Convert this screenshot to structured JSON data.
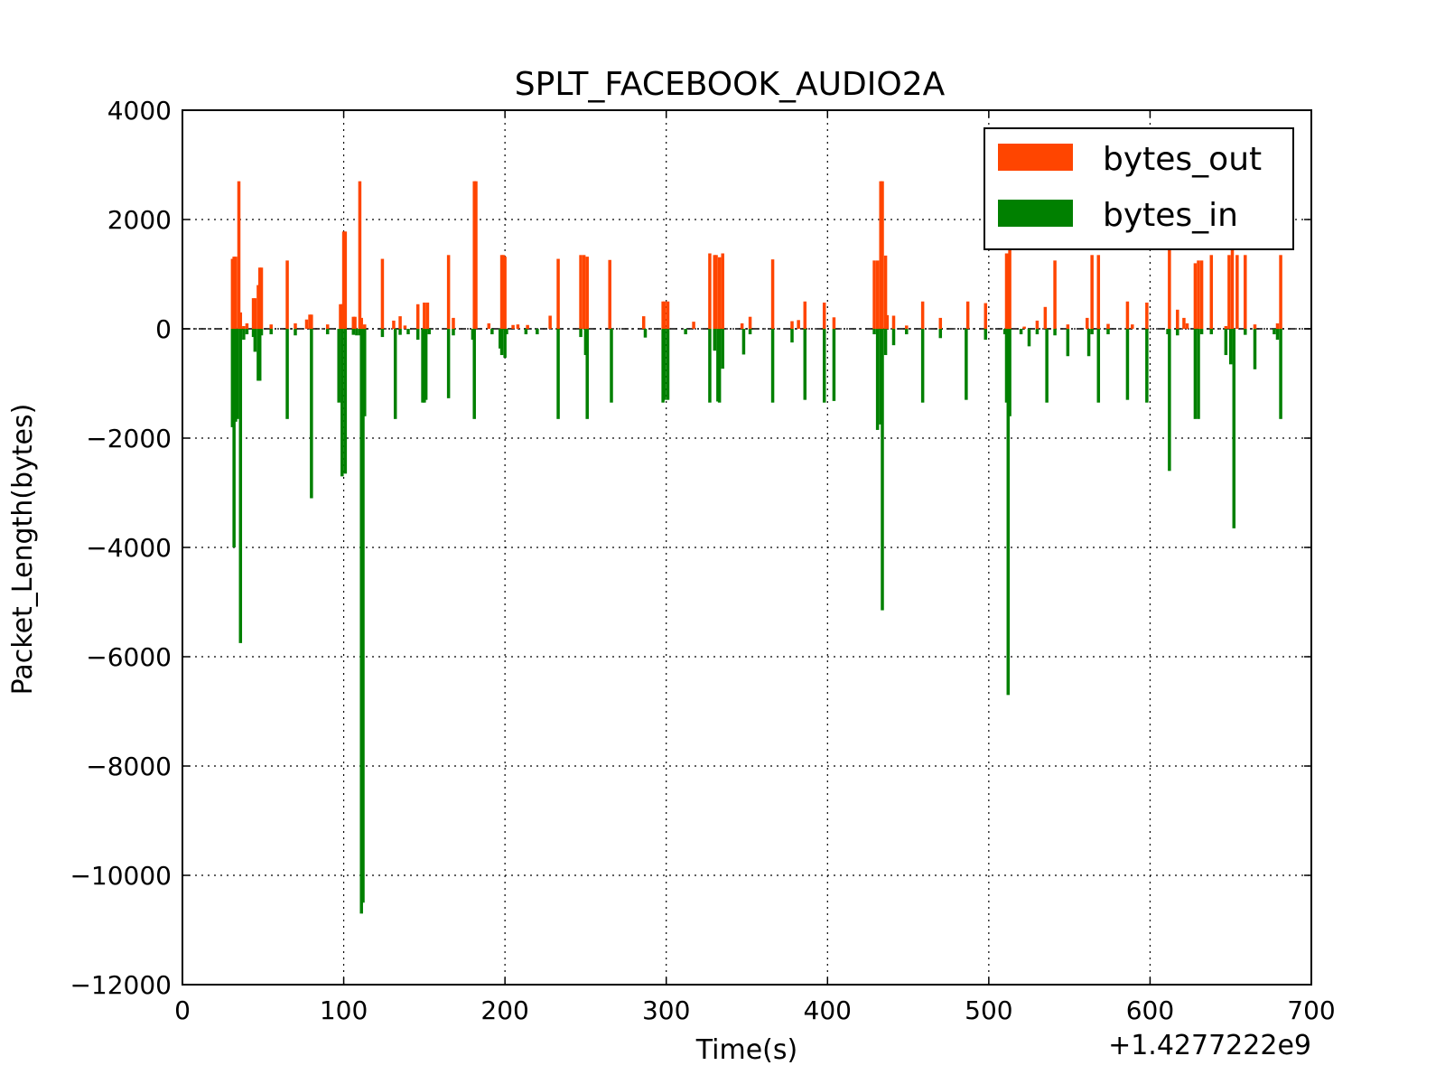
{
  "chart_data": {
    "type": "bar",
    "title": "SPLT_FACEBOOK_AUDIO2A",
    "xlabel": "Time(s)",
    "ylabel": "Packet_Length(bytes)",
    "x_offset_label": "+1.4277222e9",
    "xlim": [
      0,
      700
    ],
    "ylim": [
      -12000,
      4000
    ],
    "x_ticks": [
      0,
      100,
      200,
      300,
      400,
      500,
      600,
      700
    ],
    "x_tick_labels": [
      "0",
      "100",
      "200",
      "300",
      "400",
      "500",
      "600",
      "700"
    ],
    "y_ticks": [
      4000,
      2000,
      0,
      -2000,
      -4000,
      -6000,
      -8000,
      -10000,
      -12000
    ],
    "y_tick_labels": [
      "4000",
      "2000",
      "0",
      "−2000",
      "−4000",
      "−6000",
      "−8000",
      "−10000",
      "−12000"
    ],
    "grid": true,
    "legend_position": "top-right",
    "series": [
      {
        "name": "bytes_out",
        "color": "#ff4500",
        "x": [
          31,
          32,
          33,
          35,
          36,
          38,
          40,
          44,
          45,
          47,
          48,
          49,
          55,
          65,
          70,
          77,
          79,
          80,
          90,
          98,
          99,
          100,
          101,
          106,
          107,
          110,
          111,
          113,
          124,
          131,
          135,
          138,
          146,
          150,
          152,
          165,
          168,
          181,
          182,
          190,
          198,
          199,
          200,
          205,
          208,
          214,
          228,
          233,
          247,
          249,
          251,
          265,
          286,
          298,
          299,
          301,
          317,
          327,
          330,
          331,
          333,
          335,
          347,
          352,
          366,
          378,
          382,
          386,
          398,
          404,
          429,
          431,
          433,
          434,
          436,
          437,
          441,
          449,
          459,
          470,
          487,
          498,
          511,
          512,
          513,
          522,
          530,
          535,
          541,
          549,
          561,
          564,
          568,
          574,
          586,
          589,
          598,
          612,
          617,
          621,
          623,
          628,
          630,
          632,
          638,
          647,
          649,
          651,
          654,
          659,
          665,
          679,
          681
        ],
        "values": [
          1280,
          1320,
          1320,
          2700,
          300,
          50,
          100,
          560,
          560,
          800,
          1120,
          1120,
          80,
          1250,
          100,
          170,
          260,
          260,
          80,
          450,
          450,
          1780,
          1780,
          220,
          220,
          2700,
          200,
          80,
          1280,
          150,
          230,
          60,
          450,
          480,
          480,
          1350,
          200,
          2700,
          2700,
          100,
          1350,
          1350,
          1320,
          70,
          80,
          70,
          240,
          1280,
          1350,
          1350,
          1320,
          1260,
          230,
          500,
          500,
          500,
          130,
          1380,
          1350,
          1350,
          1310,
          1380,
          100,
          220,
          1270,
          140,
          160,
          500,
          480,
          210,
          1250,
          1250,
          2700,
          2700,
          1340,
          250,
          240,
          60,
          500,
          200,
          500,
          470,
          1380,
          1380,
          1520,
          40,
          150,
          400,
          1250,
          80,
          200,
          1350,
          1350,
          90,
          500,
          80,
          480,
          1520,
          350,
          200,
          100,
          1200,
          1250,
          1250,
          1350,
          50,
          1350,
          1450,
          1350,
          1350,
          80,
          100,
          1350
        ]
      },
      {
        "name": "bytes_in",
        "color": "#008000",
        "x": [
          31,
          32,
          33,
          34,
          36,
          38,
          40,
          44,
          45,
          47,
          48,
          49,
          55,
          65,
          70,
          80,
          90,
          97,
          99,
          101,
          106,
          108,
          110,
          111,
          112,
          113,
          124,
          132,
          135,
          140,
          146,
          149,
          150,
          151,
          153,
          165,
          168,
          180,
          181,
          192,
          197,
          198,
          200,
          201,
          213,
          220,
          233,
          247,
          250,
          251,
          266,
          287,
          298,
          299,
          301,
          312,
          327,
          330,
          332,
          333,
          335,
          348,
          352,
          366,
          378,
          386,
          398,
          404,
          429,
          431,
          433,
          434,
          436,
          441,
          449,
          459,
          470,
          486,
          498,
          510,
          511,
          512,
          513,
          520,
          525,
          530,
          536,
          541,
          549,
          562,
          564,
          568,
          574,
          586,
          598,
          611,
          612,
          617,
          628,
          630,
          632,
          638,
          647,
          650,
          652,
          659,
          665,
          677,
          679,
          681
        ],
        "values": [
          -1800,
          -4000,
          -1700,
          -1650,
          -5750,
          -200,
          -100,
          -150,
          -420,
          -950,
          -950,
          -120,
          -100,
          -1650,
          -120,
          -3100,
          -100,
          -1350,
          -2700,
          -2650,
          -110,
          -120,
          -120,
          -10700,
          -10500,
          -1600,
          -150,
          -1650,
          -110,
          -100,
          -200,
          -1350,
          -1350,
          -1300,
          -100,
          -1270,
          -120,
          -200,
          -1650,
          -100,
          -360,
          -480,
          -530,
          -100,
          -100,
          -100,
          -1650,
          -150,
          -480,
          -1650,
          -1350,
          -160,
          -1350,
          -1300,
          -1300,
          -100,
          -1350,
          -400,
          -1330,
          -1350,
          -730,
          -470,
          -100,
          -1350,
          -250,
          -1300,
          -1350,
          -1320,
          -100,
          -1850,
          -1750,
          -5150,
          -480,
          -300,
          -100,
          -1350,
          -170,
          -1300,
          -200,
          -100,
          -1350,
          -6700,
          -1600,
          -100,
          -320,
          -100,
          -1350,
          -120,
          -500,
          -500,
          -100,
          -1350,
          -100,
          -1300,
          -1350,
          -100,
          -2600,
          -120,
          -1650,
          -1650,
          -100,
          -100,
          -480,
          -650,
          -3650,
          -110,
          -740,
          -100,
          -200,
          -1650
        ]
      }
    ]
  }
}
